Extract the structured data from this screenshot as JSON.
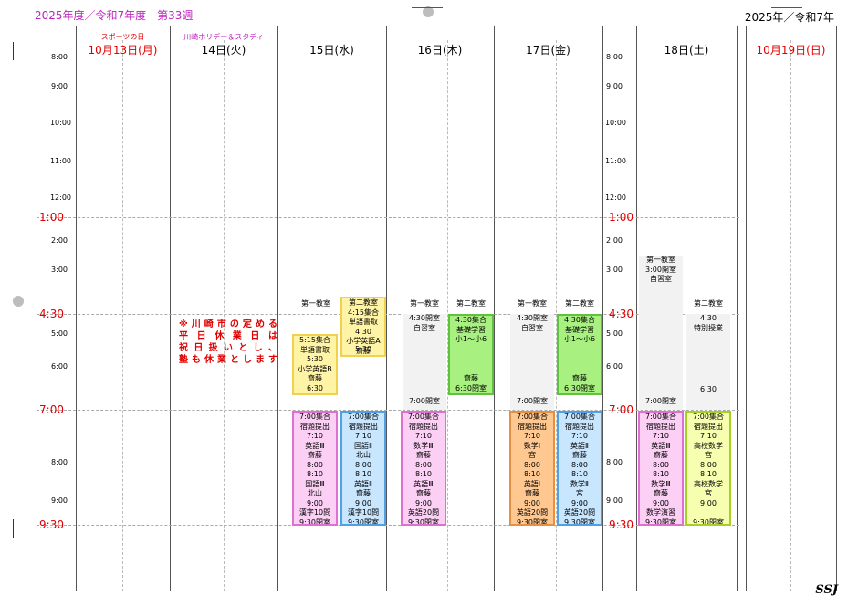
{
  "header": {
    "left": "2025年度／令和7年度　第33週",
    "right": "2025年／令和7年"
  },
  "notes": {
    "mon": "スポーツの日",
    "tue": "川崎ホリデー＆スタディ"
  },
  "days": {
    "mon": "10月13日(月)",
    "tue": "14日(火)",
    "wed": "15日(水)",
    "thu": "16日(木)",
    "fri": "17日(金)",
    "sat": "18日(土)",
    "sun": "10月19日(日)"
  },
  "times_left": [
    "8:00",
    "9:00",
    "10:00",
    "11:00",
    "12:00",
    "2:00",
    "3:00",
    "5:00",
    "6:00",
    "8:00",
    "9:00"
  ],
  "times_right": [
    "8:00",
    "9:00",
    "10:00",
    "11:00",
    "12:00",
    "2:00",
    "3:00",
    "5:00",
    "6:00",
    "8:00",
    "9:00"
  ],
  "big_times_left": [
    "1:00",
    "4:30",
    "7:00",
    "9:30"
  ],
  "big_times_right": [
    "1:00",
    "4:30",
    "7:00",
    "9:30"
  ],
  "holiday_note": [
    "※川崎市の定める",
    "平日休業日は",
    "祝日扱いとし、",
    "塾も休業とします"
  ],
  "footer": {
    "signature": "SSJ"
  },
  "colors": {
    "red": "#e00000",
    "magenta": "#c020c0",
    "yellow": "#fff3a6",
    "yellow_border": "#f0d050",
    "pink": "#fbd0f4",
    "pink_border": "#e070d0",
    "blue": "#c9e6ff",
    "blue_border": "#50a0e8",
    "orange": "#ffc890",
    "orange_border": "#e89040",
    "lime": "#f6ffb0",
    "lime_border": "#a8d020",
    "green": "#a8f080",
    "green_border": "#60c040",
    "gray": "#f2f2f2"
  },
  "wed": {
    "a_title": "第一教室",
    "b_title": "第二教室",
    "a_early": [
      "5:15集合",
      "単語書取",
      "5:30",
      "小学英語B",
      "齋藤",
      "6:30"
    ],
    "b_early": [
      "4:15集合",
      "単語書取",
      "4:30",
      "小学英語A",
      "齋藤",
      "5:30"
    ],
    "a_night": [
      "7:00集合",
      "宿題提出",
      "7:10",
      "英語Ⅲ",
      "齋藤",
      "8:00",
      "8:10",
      "国語Ⅲ",
      "北山",
      "9:00",
      "漢字10問",
      "9:30閉室"
    ],
    "b_night": [
      "7:00集合",
      "宿題提出",
      "7:10",
      "国語Ⅱ",
      "北山",
      "8:00",
      "8:10",
      "英語Ⅱ",
      "齋藤",
      "9:00",
      "漢字10問",
      "9:30閉室"
    ]
  },
  "thu": {
    "a_title": "第一教室",
    "b_title": "第二教室",
    "a_open": "4:30開室",
    "a_self": "自習室",
    "a_close": "7:00閉室",
    "b_green": [
      "4:30集合",
      "基礎学習",
      "小1～小6",
      "齋藤",
      "6:30閉室"
    ],
    "a_night": [
      "7:00集合",
      "宿題提出",
      "7:10",
      "数学Ⅲ",
      "齋藤",
      "8:00",
      "8:10",
      "英語Ⅲ",
      "齋藤",
      "9:00",
      "英語20問",
      "9:30閉室"
    ]
  },
  "fri": {
    "a_title": "第一教室",
    "b_title": "第二教室",
    "a_open": "4:30開室",
    "a_self": "自習室",
    "a_close": "7:00閉室",
    "b_green": [
      "4:30集合",
      "基礎学習",
      "小1～小6",
      "齋藤",
      "6:30閉室"
    ],
    "a_night": [
      "7:00集合",
      "宿題提出",
      "7:10",
      "数学Ⅰ",
      "宮",
      "8:00",
      "8:10",
      "英語Ⅰ",
      "齋藤",
      "9:00",
      "英語20問",
      "9:30閉室"
    ],
    "b_night": [
      "7:00集合",
      "宿題提出",
      "7:10",
      "英語Ⅱ",
      "齋藤",
      "8:00",
      "8:10",
      "数学Ⅱ",
      "宮",
      "9:00",
      "英語20問",
      "9:30閉室"
    ]
  },
  "sat": {
    "a_title": "第一教室",
    "b_title": "第二教室",
    "a_open": "3:00開室",
    "a_self": "自習室",
    "a_close": "7:00閉室",
    "b_open": "4:30",
    "b_special": "特別授業",
    "b_end": "6:30",
    "a_night": [
      "7:00集合",
      "宿題提出",
      "7:10",
      "英語Ⅲ",
      "齋藤",
      "8:00",
      "8:10",
      "数学Ⅲ",
      "齋藤",
      "9:00",
      "数学演習",
      "9:30閉室"
    ],
    "b_night": [
      "7:00集合",
      "宿題提出",
      "7:10",
      "高校数学",
      "宮",
      "8:00",
      "8:10",
      "高校数学",
      "宮",
      "9:00",
      "9:30閉室"
    ]
  }
}
